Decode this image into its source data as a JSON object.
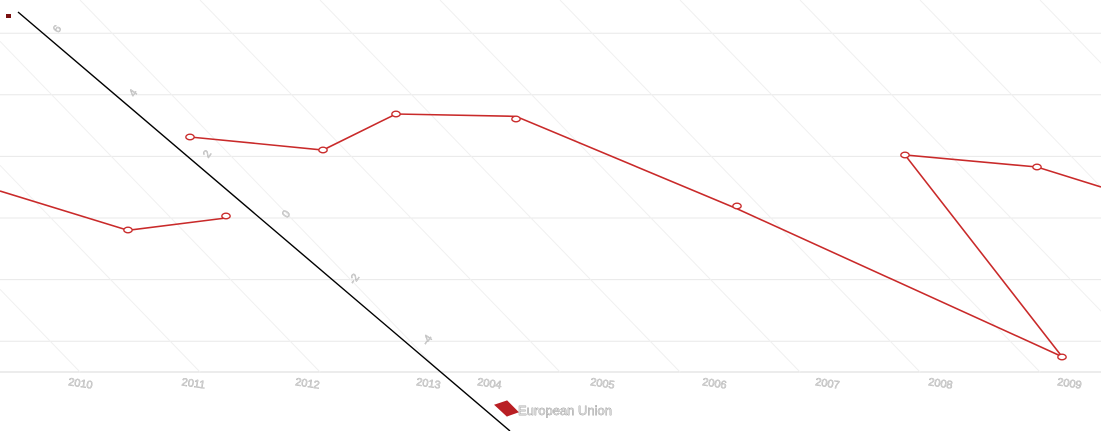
{
  "chart_data": {
    "type": "line",
    "title": "",
    "xlabel": "",
    "ylabel": "",
    "ylim": [
      -5,
      6
    ],
    "y_ticks": [
      "6",
      "4",
      "2",
      "0",
      "-2",
      "-4"
    ],
    "x_ticks": [
      "2004",
      "2005",
      "2006",
      "2007",
      "2008",
      "2009",
      "2010",
      "2011",
      "2012",
      "2013"
    ],
    "categories": [
      "2004",
      "2005",
      "2006",
      "2007",
      "2008",
      "2009",
      "2010",
      "2011",
      "2012",
      "2013"
    ],
    "series": [
      {
        "name": "European Union",
        "values": [
          3.3,
          0.3,
          -4.5,
          2.1,
          1.7,
          1.0,
          -0.4,
          -0.0,
          2.2,
          2.6
        ]
      }
    ],
    "legend": {
      "position": "bottom-left",
      "entries": [
        "European Union"
      ]
    },
    "grid": true,
    "colors": {
      "series": "#c92a2a",
      "axis": "#000000",
      "grid": "#e8e8e8"
    }
  }
}
